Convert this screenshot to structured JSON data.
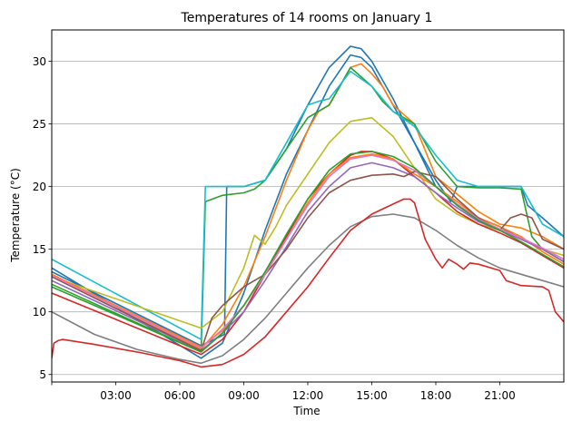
{
  "chart_data": {
    "type": "line",
    "title": "Temperatures of 14 rooms on January 1",
    "xlabel": "Time",
    "ylabel": "Temperature (°C)",
    "xlim": [
      0,
      24
    ],
    "ylim": [
      4.4,
      32.5
    ],
    "grid": "horizontal",
    "xticks": [
      {
        "value": 3,
        "label": "03:00"
      },
      {
        "value": 6,
        "label": "06:00"
      },
      {
        "value": 9,
        "label": "09:00"
      },
      {
        "value": 12,
        "label": "12:00"
      },
      {
        "value": 15,
        "label": "15:00"
      },
      {
        "value": 18,
        "label": "18:00"
      },
      {
        "value": 21,
        "label": "21:00"
      }
    ],
    "yticks": [
      {
        "value": 5,
        "label": "5"
      },
      {
        "value": 10,
        "label": "10"
      },
      {
        "value": 15,
        "label": "15"
      },
      {
        "value": 20,
        "label": "20"
      },
      {
        "value": 25,
        "label": "25"
      },
      {
        "value": 30,
        "label": "30"
      }
    ],
    "series": [
      {
        "color": "#1f77b4",
        "x": [
          0,
          7,
          8,
          9,
          10,
          11,
          12,
          13,
          14,
          14.5,
          15,
          16,
          17,
          18,
          19,
          20,
          21,
          22,
          23,
          24
        ],
        "y": [
          13.5,
          6.3,
          7.5,
          11.5,
          16.5,
          21,
          24.5,
          28,
          30.5,
          30.3,
          29.5,
          26.5,
          23.5,
          20,
          18.5,
          17.5,
          16.8,
          15.8,
          15,
          14
        ]
      },
      {
        "color": "#1f77b4",
        "x": [
          0,
          7,
          8.1,
          8.2,
          9,
          10,
          11,
          12,
          13,
          14,
          14.5,
          15,
          16,
          17,
          18,
          18.7,
          19,
          20,
          21,
          22,
          22.3,
          23,
          24
        ],
        "y": [
          13.2,
          7.3,
          8.2,
          20,
          20,
          20.5,
          23,
          26.5,
          29.5,
          31.2,
          31,
          30,
          27,
          23.5,
          20.5,
          18.8,
          20,
          20,
          20,
          20,
          18.5,
          17.5,
          16
        ]
      },
      {
        "color": "#ff7f0e",
        "x": [
          0,
          7,
          8,
          9,
          10,
          11,
          12,
          12.5,
          13,
          14,
          14.5,
          15,
          15.5,
          16,
          17,
          18,
          20,
          21,
          22,
          23,
          24
        ],
        "y": [
          13,
          7,
          9,
          12,
          16,
          20.5,
          24.5,
          26,
          26.5,
          29.5,
          29.8,
          29,
          28,
          26.5,
          25,
          20.8,
          18,
          17,
          16.7,
          16,
          15
        ]
      },
      {
        "color": "#2ca02c",
        "x": [
          0,
          7,
          7.2,
          8,
          9,
          9.5,
          10,
          11,
          12,
          13,
          14,
          15,
          15.5,
          16,
          17,
          18,
          19,
          20,
          21,
          22,
          22.5,
          23,
          24
        ],
        "y": [
          12.2,
          6.8,
          18.8,
          19.3,
          19.5,
          19.8,
          20.5,
          23,
          25.5,
          26.5,
          29.5,
          28,
          26.8,
          26,
          25,
          22,
          20,
          19.9,
          19.9,
          19.8,
          16,
          15,
          14
        ]
      },
      {
        "color": "#17becf",
        "x": [
          0,
          7,
          7.2,
          8,
          9,
          10,
          11,
          12,
          12.5,
          13,
          14,
          15,
          16,
          17,
          18,
          19,
          20,
          21,
          22,
          22.5,
          23,
          24
        ],
        "y": [
          14.2,
          7.8,
          20,
          20,
          20,
          20.5,
          23.5,
          26.5,
          26.8,
          27,
          29.2,
          28,
          26,
          24.8,
          22.5,
          20.5,
          20,
          20,
          20,
          18.5,
          17,
          16
        ]
      },
      {
        "color": "#bcbd22",
        "x": [
          0,
          7,
          8,
          9,
          9.5,
          10,
          10.5,
          11,
          12,
          13,
          14,
          15,
          16,
          17,
          18,
          19,
          20,
          21,
          22,
          23,
          24
        ],
        "y": [
          12.8,
          8.7,
          10,
          13.5,
          16.1,
          15.4,
          16.8,
          18.5,
          21,
          23.5,
          25.2,
          25.5,
          24,
          21.5,
          19,
          17.8,
          17,
          16.5,
          15.8,
          15,
          14.5
        ]
      },
      {
        "color": "#d62728",
        "x": [
          0,
          7,
          8,
          9,
          10,
          11,
          12,
          13,
          14,
          14.5,
          15,
          16,
          16.5,
          17,
          18,
          19,
          20,
          21,
          22,
          23,
          24
        ],
        "y": [
          11.5,
          6.6,
          7.8,
          10,
          13,
          16,
          19,
          21,
          22.5,
          22.8,
          22.8,
          22.2,
          21.5,
          20.8,
          19.5,
          18,
          17,
          16.3,
          15.5,
          14.5,
          13.5
        ]
      },
      {
        "color": "#ff7f0e",
        "x": [
          0,
          7,
          8,
          9,
          10,
          11,
          12,
          13,
          14,
          15,
          16,
          16.5,
          17,
          18,
          19,
          20,
          21,
          22,
          23,
          24
        ],
        "y": [
          13,
          7.2,
          8.5,
          10.5,
          13,
          15.8,
          18.7,
          21,
          22.3,
          22.6,
          22.2,
          21.6,
          21,
          20,
          18.8,
          17.5,
          16.8,
          16,
          14.8,
          13.8
        ]
      },
      {
        "color": "#9467bd",
        "x": [
          0,
          7,
          8,
          9,
          10,
          11,
          12,
          13,
          14,
          15,
          16,
          17,
          18,
          19,
          20,
          21,
          22,
          23,
          24
        ],
        "y": [
          12.5,
          6.9,
          8.3,
          10,
          12.5,
          15.2,
          18,
          20,
          21.5,
          21.9,
          21.5,
          20.8,
          19.5,
          18.3,
          17.2,
          16.5,
          15.8,
          15,
          14
        ]
      },
      {
        "color": "#8c564b",
        "x": [
          0,
          7,
          7.5,
          8,
          9,
          9.5,
          10,
          11,
          12,
          13,
          14,
          15,
          16,
          16.5,
          17,
          18,
          19,
          20,
          21,
          21.5,
          22,
          22.5,
          23,
          24
        ],
        "y": [
          12.8,
          6.9,
          9.5,
          10.5,
          12,
          12.5,
          13,
          15,
          17.5,
          19.5,
          20.5,
          20.9,
          21,
          20.8,
          21.2,
          20.8,
          19,
          17.5,
          16.5,
          17.5,
          17.8,
          17.5,
          15.8,
          15
        ]
      },
      {
        "color": "#e377c2",
        "x": [
          0,
          7,
          8,
          9,
          10,
          11,
          12,
          13,
          14,
          15,
          16,
          17,
          18,
          19,
          20,
          21,
          22,
          23,
          24
        ],
        "y": [
          12.9,
          7.1,
          8.6,
          10.5,
          13,
          15.8,
          18.5,
          20.8,
          22.2,
          22.5,
          22.1,
          21.3,
          20,
          18.6,
          17.4,
          16.6,
          15.9,
          15.1,
          14.2
        ]
      },
      {
        "color": "#7f7f7f",
        "x": [
          0,
          2,
          4,
          6,
          7,
          8,
          9,
          10,
          11,
          12,
          13,
          14,
          15,
          16,
          17,
          18,
          19,
          20,
          21,
          22,
          23,
          24
        ],
        "y": [
          10,
          8.2,
          7,
          6.2,
          5.9,
          6.5,
          7.8,
          9.5,
          11.5,
          13.5,
          15.3,
          16.8,
          17.6,
          17.8,
          17.5,
          16.5,
          15.3,
          14.3,
          13.5,
          13,
          12.5,
          12
        ]
      },
      {
        "color": "#d62728",
        "x": [
          0,
          0.1,
          0.3,
          0.5,
          2,
          4,
          6,
          7,
          8,
          9,
          10,
          11,
          12,
          13,
          14,
          15,
          16,
          16.5,
          16.8,
          17,
          17.5,
          18,
          18.3,
          18.6,
          19,
          19.3,
          19.6,
          20,
          21,
          21.3,
          22,
          23,
          23.3,
          23.6,
          24
        ],
        "y": [
          6.3,
          7.5,
          7.7,
          7.8,
          7.4,
          6.8,
          6.1,
          5.6,
          5.8,
          6.6,
          8,
          10,
          12,
          14.3,
          16.5,
          17.8,
          18.6,
          19,
          19,
          18.7,
          15.8,
          14.2,
          13.5,
          14.2,
          13.8,
          13.4,
          13.9,
          13.8,
          13.3,
          12.5,
          12.1,
          12,
          11.7,
          10,
          9.2
        ]
      },
      {
        "color": "#2ca02c",
        "x": [
          0,
          7,
          8,
          9,
          10,
          11,
          12,
          13,
          14,
          15,
          16,
          17,
          18,
          19,
          20,
          21,
          22,
          23,
          24
        ],
        "y": [
          12,
          6.8,
          8.3,
          10.5,
          13.2,
          16.2,
          19,
          21.3,
          22.6,
          22.8,
          22.4,
          21.5,
          20,
          18.5,
          17.3,
          16.5,
          15.6,
          14.6,
          13.6
        ]
      }
    ]
  }
}
